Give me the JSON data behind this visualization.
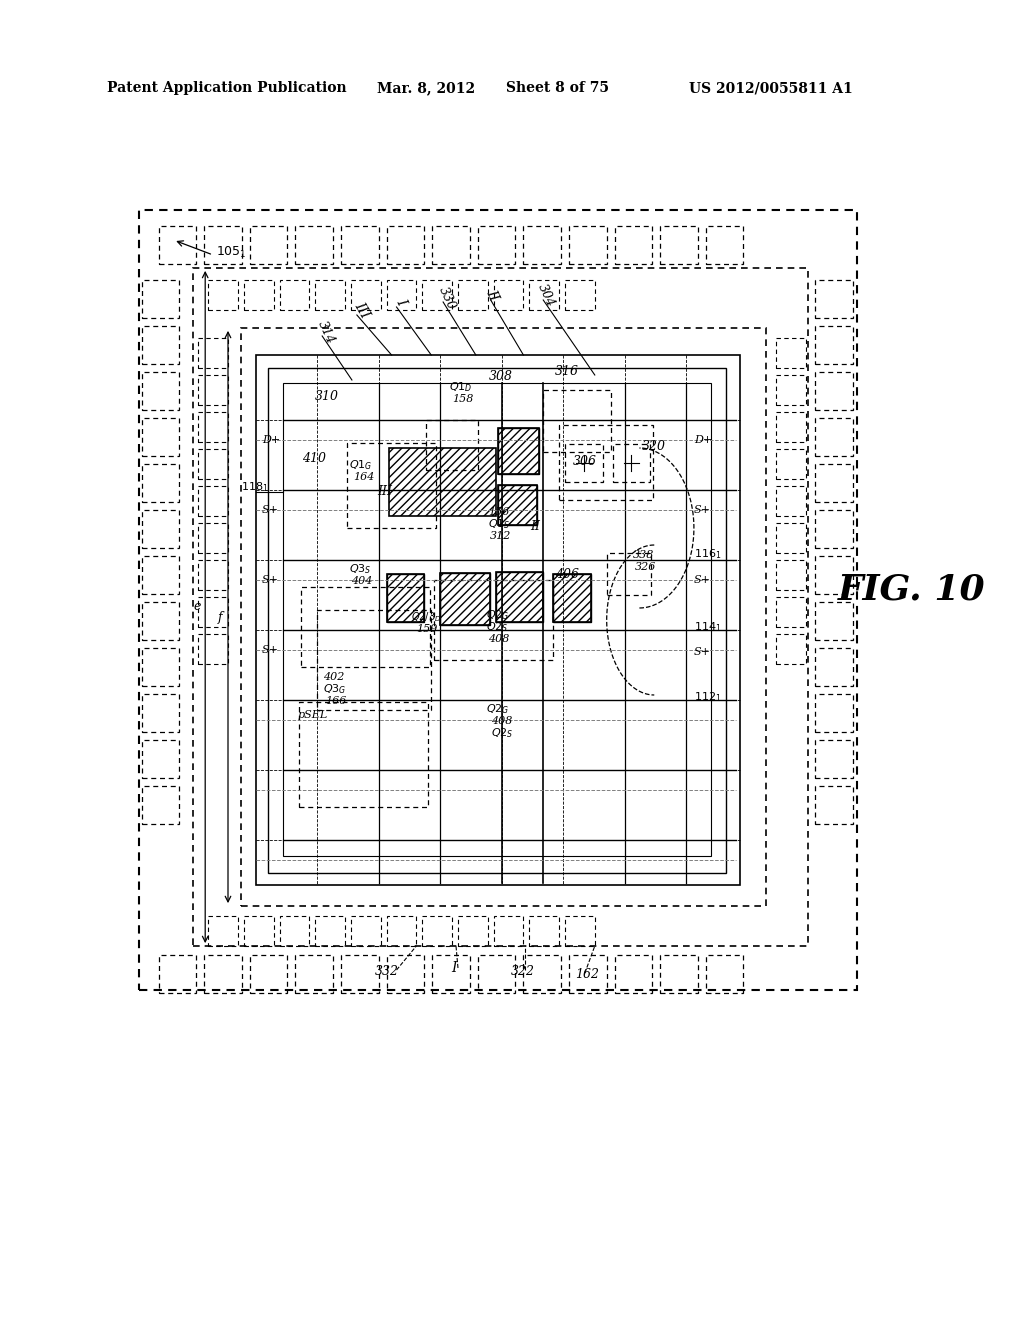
{
  "bg_color": "#ffffff",
  "header_text": "Patent Application Publication",
  "header_date": "Mar. 8, 2012",
  "header_sheet": "Sheet 8 of 75",
  "header_patent": "US 2012/0055811 A1",
  "fig_label": "FIG. 10"
}
